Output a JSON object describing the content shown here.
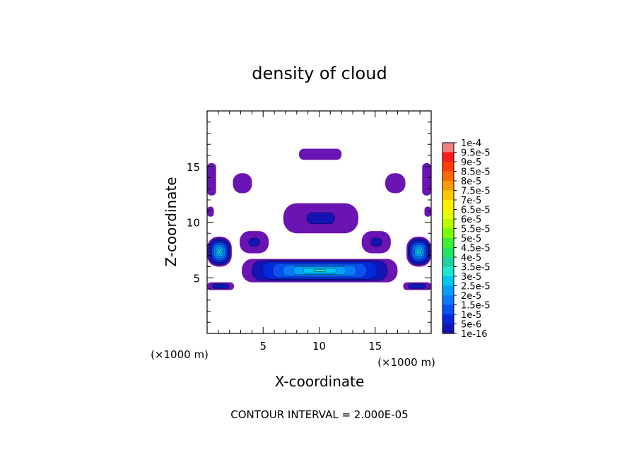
{
  "chart_data": {
    "type": "heatmap",
    "title": "density of cloud",
    "xlabel": "X-coordinate",
    "ylabel": "Z-coordinate",
    "xunit": "(×1000 m)",
    "yunit": "(×1000 m)",
    "xlim": [
      0,
      20
    ],
    "ylim": [
      0,
      20
    ],
    "x_ticks": [
      5,
      10,
      15
    ],
    "y_ticks": [
      5,
      10,
      15
    ],
    "grid": false,
    "legend_placement": "right",
    "footer": "CONTOUR INTERVAL = 2.000E-05",
    "colorbar": {
      "labels": [
        "1e-4",
        "9.5e-5",
        "9e-5",
        "8.5e-5",
        "8e-5",
        "7.5e-5",
        "7e-5",
        "6.5e-5",
        "6e-5",
        "5.5e-5",
        "5e-5",
        "4.5e-5",
        "4e-5",
        "3.5e-5",
        "3e-5",
        "2.5e-5",
        "2e-5",
        "1.5e-5",
        "1e-5",
        "5e-6",
        "1e-16"
      ],
      "colors": [
        "#f08080",
        "#ff1a1a",
        "#ff3c00",
        "#ff6a00",
        "#ff9a00",
        "#ffc800",
        "#ffee00",
        "#e6ff00",
        "#b4ff00",
        "#78ff00",
        "#3cf032",
        "#20e664",
        "#1ed29b",
        "#1ee6d2",
        "#00c8f0",
        "#00a0ff",
        "#0a78ff",
        "#0a50f0",
        "#0028dc",
        "#1414b4",
        "#6a14b4"
      ]
    },
    "regions": [
      {
        "x": [
          8.2,
          12.0
        ],
        "z": [
          15.6,
          16.6
        ],
        "max_value": 1e-16
      },
      {
        "x": [
          2.3,
          4.0
        ],
        "z": [
          12.6,
          14.4
        ],
        "max_value": 1e-16
      },
      {
        "x": [
          15.9,
          17.7
        ],
        "z": [
          12.6,
          14.4
        ],
        "max_value": 1e-16
      },
      {
        "x": [
          0.0,
          0.8
        ],
        "z": [
          12.4,
          15.3
        ],
        "max_value": 1e-16
      },
      {
        "x": [
          19.2,
          20.0
        ],
        "z": [
          12.4,
          15.3
        ],
        "max_value": 1e-16
      },
      {
        "x": [
          0.0,
          0.6
        ],
        "z": [
          10.5,
          11.4
        ],
        "max_value": 1e-16
      },
      {
        "x": [
          19.4,
          20.0
        ],
        "z": [
          10.5,
          11.4
        ],
        "max_value": 1e-16
      },
      {
        "x": [
          6.8,
          13.5
        ],
        "z": [
          9.0,
          11.7
        ],
        "max_value": 5e-06
      },
      {
        "x": [
          2.9,
          5.5
        ],
        "z": [
          7.2,
          9.2
        ],
        "max_value": 5e-06
      },
      {
        "x": [
          13.8,
          16.4
        ],
        "z": [
          7.2,
          9.2
        ],
        "max_value": 5e-06
      },
      {
        "x": [
          0.0,
          2.2
        ],
        "z": [
          6.0,
          8.7
        ],
        "max_value": 3.5e-05
      },
      {
        "x": [
          17.8,
          20.0
        ],
        "z": [
          6.0,
          8.7
        ],
        "max_value": 3.5e-05
      },
      {
        "x": [
          3.1,
          17.0
        ],
        "z": [
          4.6,
          6.7
        ],
        "max_value": 3.5e-05
      },
      {
        "x": [
          0.0,
          2.4
        ],
        "z": [
          3.9,
          4.6
        ],
        "max_value": 1e-05
      },
      {
        "x": [
          17.5,
          20.0
        ],
        "z": [
          3.9,
          4.6
        ],
        "max_value": 1e-05
      }
    ]
  }
}
